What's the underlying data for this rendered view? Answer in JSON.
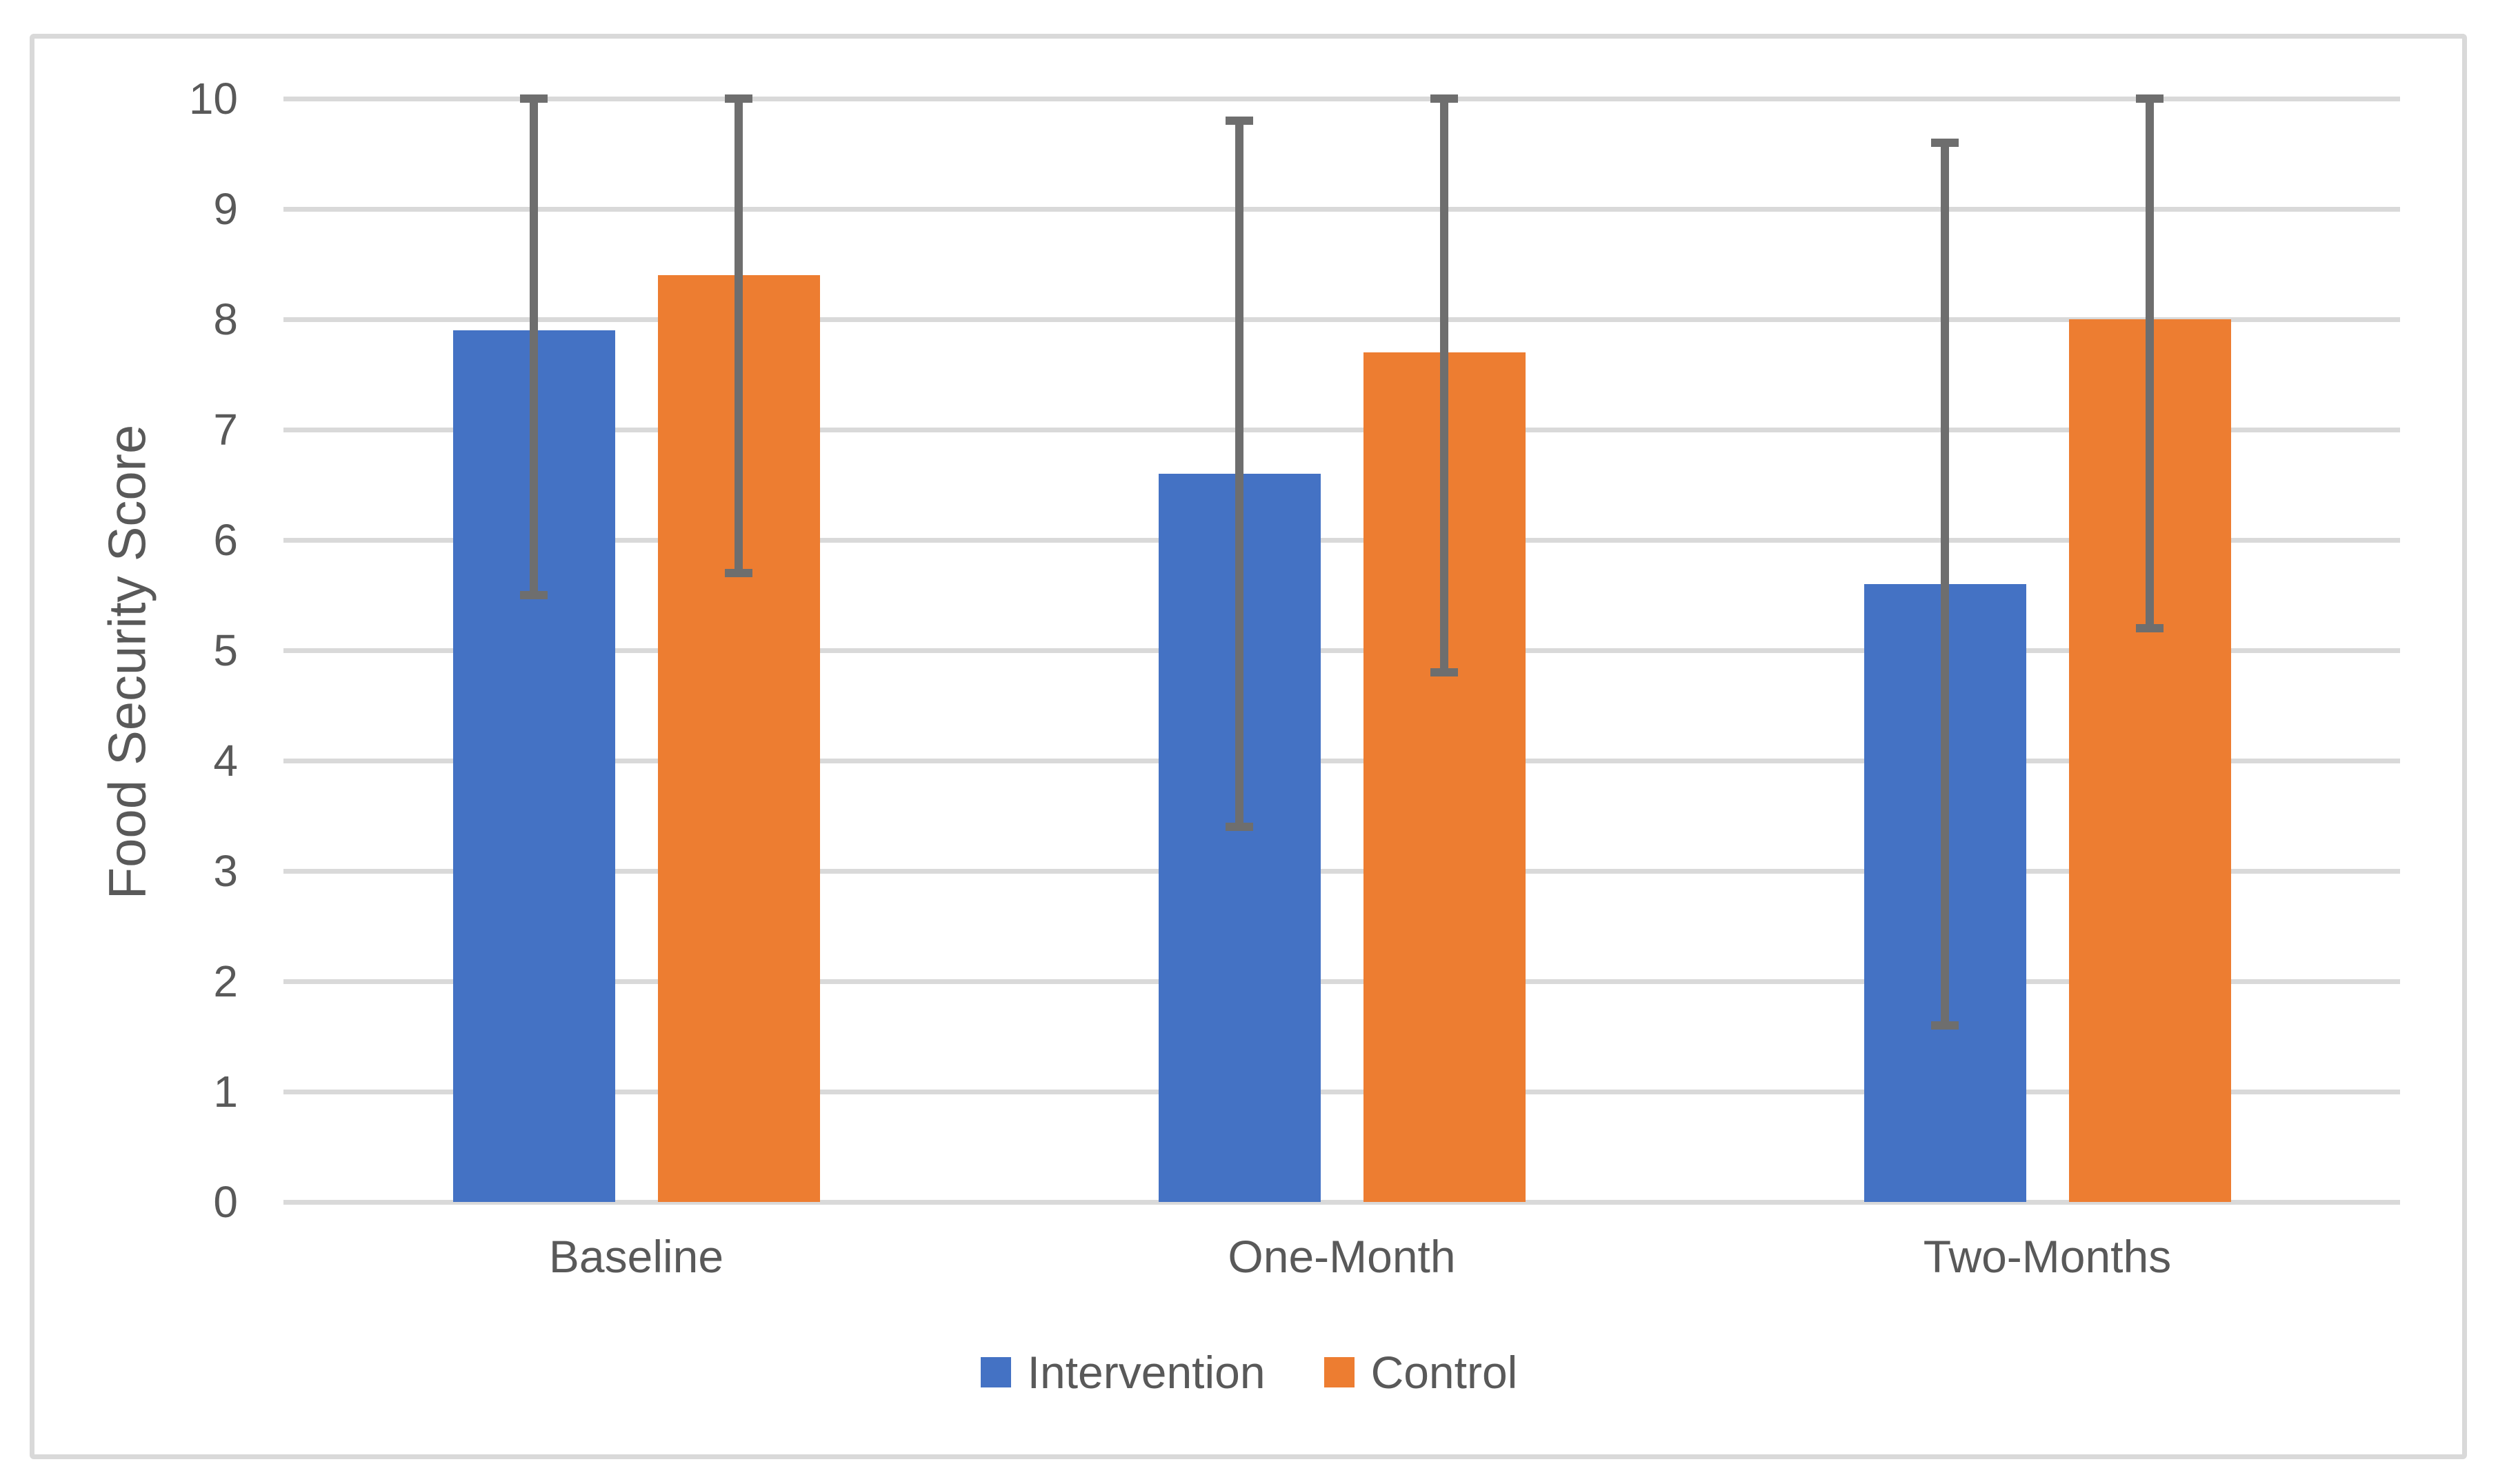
{
  "figure": {
    "background": "#FFFFFF",
    "border_color": "#D9D9D9"
  },
  "chart_data": {
    "type": "bar",
    "title": "",
    "ylabel": "Food Security Score",
    "xlabel": "",
    "ylim": [
      0,
      10
    ],
    "ytick_step": 1,
    "yticks": [
      "0",
      "1",
      "2",
      "3",
      "4",
      "5",
      "6",
      "7",
      "8",
      "9",
      "10"
    ],
    "grid": "horizontal",
    "gridline_color": "#D9D9D9",
    "text_color": "#595959",
    "error_bar_color": "#6E6E6E",
    "legend_position": "bottom",
    "categories": [
      "Baseline",
      "One-Month",
      "Two-Months"
    ],
    "series": [
      {
        "name": "Intervention",
        "color": "#4472C4",
        "values": [
          7.9,
          6.6,
          5.6
        ],
        "error_low": [
          5.5,
          3.4,
          1.6
        ],
        "error_high": [
          10.0,
          9.8,
          9.6
        ]
      },
      {
        "name": "Control",
        "color": "#ED7D31",
        "values": [
          8.4,
          7.7,
          8.0
        ],
        "error_low": [
          5.7,
          4.8,
          5.2
        ],
        "error_high": [
          10.0,
          10.0,
          10.0
        ]
      }
    ]
  }
}
